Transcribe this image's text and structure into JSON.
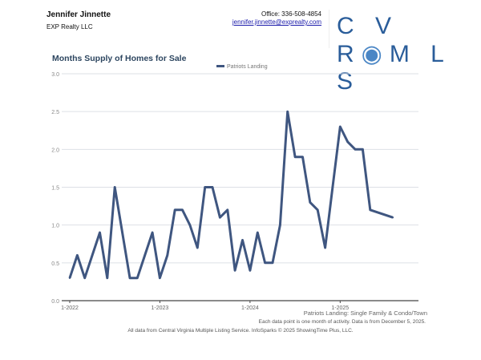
{
  "header": {
    "agent_name": "Jennifer Jinnette",
    "company": "EXP Realty LLC",
    "office": "Office: 336-508-4854",
    "email": "jennifer.jinnette@exprealty.com",
    "logo_text": "CVRMLS"
  },
  "chart_data": {
    "type": "line",
    "title": "Months Supply of Homes for Sale",
    "legend": "top-center",
    "grid": true,
    "ylim": [
      0,
      3
    ],
    "yticks": [
      "0.0",
      "0.5",
      "1.0",
      "1.5",
      "2.0",
      "2.5",
      "3.0"
    ],
    "xticks": [
      "1-2022",
      "1-2023",
      "1-2024",
      "1-2025"
    ],
    "series": [
      {
        "name": "Patriots Landing",
        "color": "#3f5680",
        "x": [
          "2022-01",
          "2022-02",
          "2022-03",
          "2022-04",
          "2022-05",
          "2022-06",
          "2022-07",
          "2022-08",
          "2022-09",
          "2022-10",
          "2022-11",
          "2022-12",
          "2023-01",
          "2023-02",
          "2023-03",
          "2023-04",
          "2023-05",
          "2023-06",
          "2023-07",
          "2023-08",
          "2023-09",
          "2023-10",
          "2023-11",
          "2023-12",
          "2024-01",
          "2024-02",
          "2024-03",
          "2024-04",
          "2024-05",
          "2024-06",
          "2024-07",
          "2024-08",
          "2024-09",
          "2024-10",
          "2024-11",
          "2024-12",
          "2025-01",
          "2025-02",
          "2025-03",
          "2025-04",
          "2025-05",
          "2025-08"
        ],
        "values": [
          0.3,
          0.6,
          0.3,
          0.6,
          0.9,
          0.3,
          1.5,
          0.9,
          0.3,
          0.3,
          0.6,
          0.9,
          0.3,
          0.6,
          1.2,
          1.2,
          1.0,
          0.7,
          1.5,
          1.5,
          1.1,
          1.2,
          0.4,
          0.8,
          0.4,
          0.9,
          0.5,
          0.5,
          1.0,
          2.5,
          1.9,
          1.9,
          1.3,
          1.2,
          0.7,
          1.5,
          2.3,
          2.1,
          2.0,
          2.0,
          1.2,
          1.1
        ]
      }
    ],
    "footnote1": "Patriots Landing: Single Family & Condo/Town",
    "footnote2": "Each data point is one month of activity. Data is from December 5, 2025.",
    "footnote3": "All data from Central Virginia Multiple Listing Service. InfoSparks © 2025 ShowingTime Plus, LLC."
  }
}
